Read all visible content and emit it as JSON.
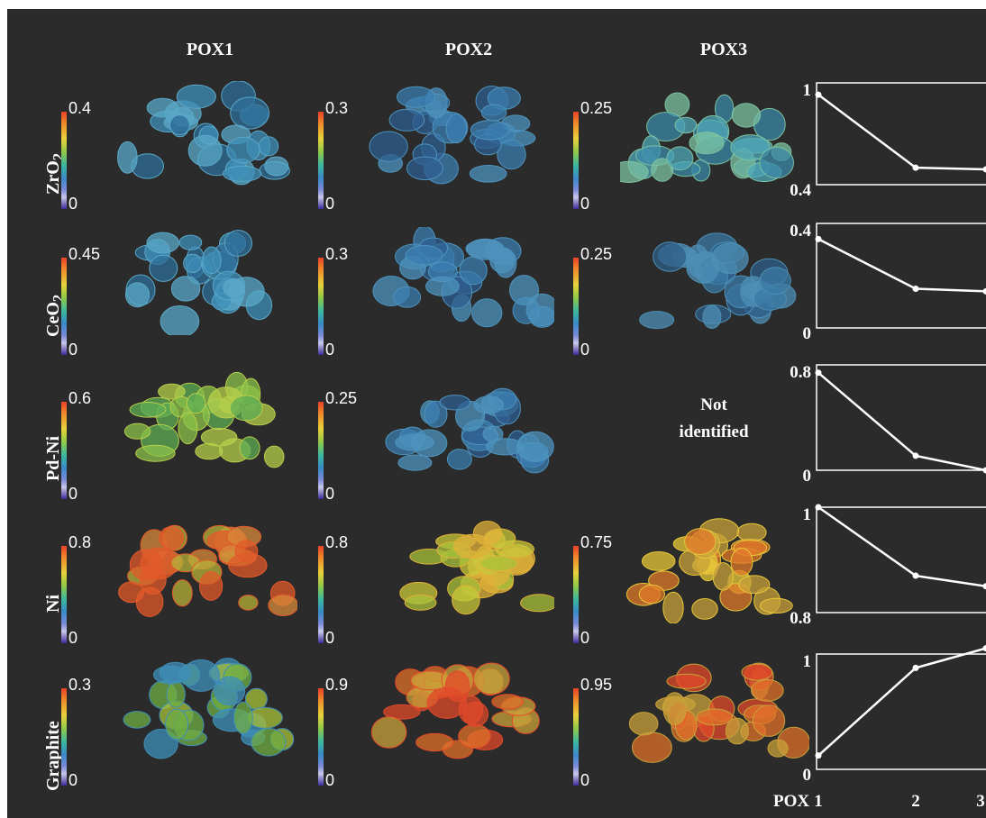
{
  "columns": [
    "POX1",
    "POX2",
    "POX3"
  ],
  "rows": [
    {
      "label": "ZrO",
      "sub": "2",
      "scales": [
        {
          "max": "0.4",
          "min": "0"
        },
        {
          "max": "0.3",
          "min": "0"
        },
        {
          "max": "0.25",
          "min": "0"
        }
      ]
    },
    {
      "label": "CeO",
      "sub": "2",
      "scales": [
        {
          "max": "0.45",
          "min": "0"
        },
        {
          "max": "0.3",
          "min": "0"
        },
        {
          "max": "0.25",
          "min": "0"
        }
      ]
    },
    {
      "label": "Pd-Ni",
      "sub": "",
      "scales": [
        {
          "max": "0.6",
          "min": "0"
        },
        {
          "max": "0.25",
          "min": "0"
        },
        null
      ]
    },
    {
      "label": "Ni",
      "sub": "",
      "scales": [
        {
          "max": "0.8",
          "min": "0"
        },
        {
          "max": "0.8",
          "min": "0"
        },
        {
          "max": "0.75",
          "min": "0"
        }
      ]
    },
    {
      "label": "Graphite",
      "sub": "",
      "scales": [
        {
          "max": "0.3",
          "min": "0"
        },
        {
          "max": "0.9",
          "min": "0"
        },
        {
          "max": "0.95",
          "min": "0"
        }
      ]
    }
  ],
  "not_identified": {
    "line1": "Not",
    "line2": "identified"
  },
  "colors": {
    "background": "#2b2b2b",
    "line": "#ffffff",
    "text": "#ffffff"
  },
  "chart_data": [
    {
      "type": "line",
      "x": [
        1,
        2,
        3
      ],
      "values": [
        0.93,
        0.5,
        0.49
      ],
      "ylim": [
        0.4,
        1
      ],
      "yticks": [
        "1",
        "0.4"
      ]
    },
    {
      "type": "line",
      "x": [
        1,
        2,
        3
      ],
      "values": [
        0.34,
        0.15,
        0.14
      ],
      "ylim": [
        0,
        0.4
      ],
      "yticks": [
        "0.4",
        "0"
      ]
    },
    {
      "type": "line",
      "x": [
        1,
        2,
        3
      ],
      "values": [
        0.74,
        0.11,
        0.0
      ],
      "ylim": [
        0,
        0.8
      ],
      "yticks": [
        "0.8",
        "0"
      ]
    },
    {
      "type": "line",
      "x": [
        1,
        2,
        3
      ],
      "values": [
        1.0,
        0.87,
        0.85
      ],
      "ylim": [
        0.8,
        1
      ],
      "yticks": [
        "1",
        "0.8"
      ]
    },
    {
      "type": "line",
      "x": [
        1,
        2,
        3
      ],
      "values": [
        0.12,
        0.88,
        1.05
      ],
      "ylim": [
        0,
        1
      ],
      "yticks": [
        "1",
        "0"
      ]
    }
  ],
  "xaxis": {
    "label": "POX",
    "ticks": [
      "1",
      "2",
      "3"
    ]
  }
}
